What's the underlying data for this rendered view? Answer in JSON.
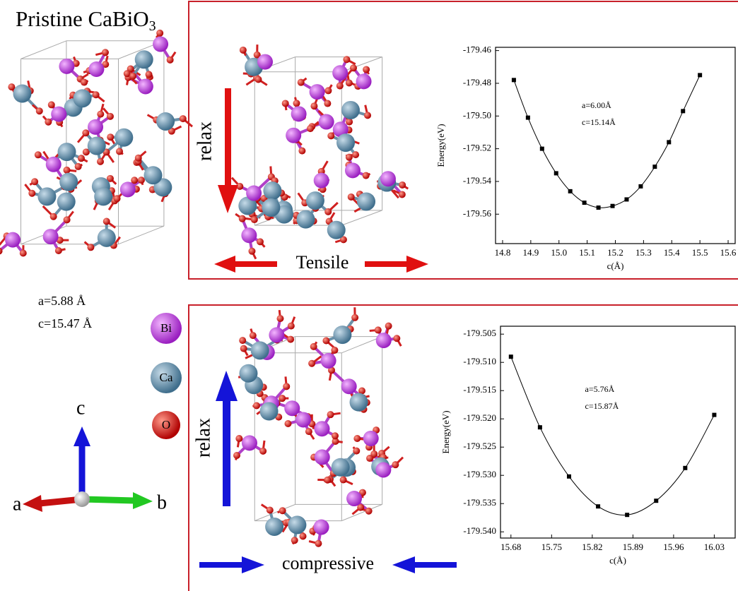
{
  "figure": {
    "title": "Pristine CaBiO",
    "title_subscript": "3",
    "lattice_a": "a=5.88 Å",
    "lattice_c": "c=15.47 Å",
    "legend": [
      "Bi",
      "Ca",
      "O"
    ],
    "axes": [
      "a",
      "b",
      "c"
    ],
    "top_panel": {
      "arrow_label": "relax",
      "strain_label": "Tensile"
    },
    "bottom_panel": {
      "arrow_label": "relax",
      "strain_label": "compressive"
    }
  },
  "chart_data": [
    {
      "type": "line",
      "xlabel": "c(Å)",
      "ylabel": "Energy(eV)",
      "annotations": [
        "a=6.00Å",
        "c=15.14Å"
      ],
      "color": "#000000",
      "x": [
        14.84,
        14.89,
        14.94,
        14.99,
        15.04,
        15.09,
        15.14,
        15.19,
        15.24,
        15.29,
        15.34,
        15.39,
        15.44,
        15.5
      ],
      "values": [
        -179.478,
        -179.501,
        -179.52,
        -179.535,
        -179.546,
        -179.553,
        -179.556,
        -179.555,
        -179.551,
        -179.543,
        -179.531,
        -179.516,
        -179.497,
        -179.475
      ],
      "xlim": [
        14.775,
        15.625
      ],
      "ylim": [
        -179.578,
        -179.458
      ],
      "xticks": [
        14.8,
        14.9,
        {
          "value": 15,
          "label": "15.0"
        },
        15.1,
        15.2,
        15.3,
        15.4,
        15.5,
        15.6
      ],
      "yticks": [
        -179.46,
        -179.48,
        {
          "value": -179.5,
          "label": "-179.50"
        },
        -179.52,
        -179.54,
        -179.56
      ]
    },
    {
      "type": "line",
      "xlabel": "c(Å)",
      "ylabel": "Energy(eV)",
      "annotations": [
        "a=5.76Å",
        "c=15.87Å"
      ],
      "color": "#000000",
      "x": [
        15.68,
        15.73,
        15.78,
        15.83,
        15.88,
        15.93,
        15.98,
        16.03
      ],
      "values": [
        -179.509,
        -179.5215,
        -179.5302,
        -179.5355,
        -179.537,
        -179.5345,
        -179.5287,
        -179.5193
      ],
      "xlim": [
        15.662,
        16.066
      ],
      "ylim": [
        -179.5411,
        -179.5036
      ],
      "xticks": [
        15.68,
        15.75,
        15.82,
        15.89,
        15.96,
        16.03
      ],
      "yticks": [
        -179.505,
        {
          "value": -179.51,
          "label": "-179.510"
        },
        -179.515,
        {
          "value": -179.52,
          "label": "-179.520"
        },
        -179.525,
        {
          "value": -179.53,
          "label": "-179.530"
        },
        -179.535,
        {
          "value": -179.54,
          "label": "-179.540"
        }
      ]
    }
  ]
}
